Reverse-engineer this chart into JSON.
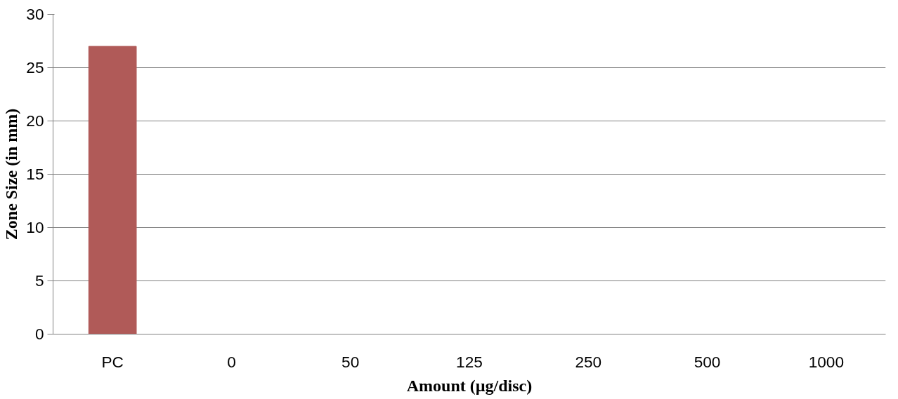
{
  "chart_data": {
    "type": "bar",
    "xlabel": "Amount (µg/disc)",
    "ylabel": "Zone Size (in mm)",
    "categories": [
      "PC",
      "0",
      "50",
      "125",
      "250",
      "500",
      "1000"
    ],
    "values": [
      27,
      0,
      0,
      0,
      0,
      0,
      0
    ],
    "color": "#b05a58",
    "ylim": [
      0,
      30
    ],
    "yticks": [
      0,
      5,
      10,
      15,
      20,
      25,
      30
    ],
    "grid": "y"
  }
}
